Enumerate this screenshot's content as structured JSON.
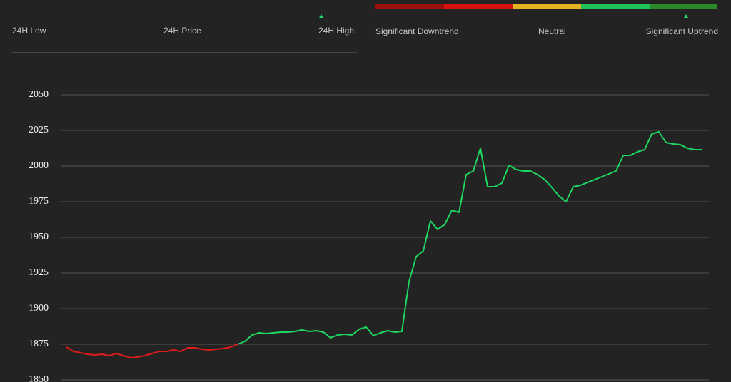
{
  "header": {
    "low_label": "24H Low",
    "price_label": "24H Price",
    "high_label": "24H High"
  },
  "trend": {
    "labels": [
      "Significant Downtrend",
      "Neutral",
      "Significant Uptrend"
    ]
  },
  "chart_data": {
    "type": "line",
    "ylim": [
      1849,
      2070
    ],
    "yticks": [
      1850,
      1875,
      1900,
      1925,
      1950,
      1975,
      2000,
      2025,
      2050
    ],
    "grid": true,
    "series": [
      {
        "color": "#e01b1b",
        "values": [
          1873,
          1870,
          1869,
          1868,
          1867.5,
          1868,
          1867,
          1868.5,
          1867,
          1865.5,
          1866,
          1867,
          1868.5,
          1870,
          1870,
          1871,
          1870,
          1872.5,
          1872.5,
          1871.5,
          1871,
          1871.5,
          1872,
          1873,
          1875,
          null,
          null,
          null,
          null,
          null,
          null,
          null,
          null,
          null,
          null,
          null,
          null,
          null,
          null,
          null,
          null,
          null,
          null,
          null,
          null,
          null,
          null,
          null,
          null,
          null,
          null,
          null,
          null,
          null,
          null,
          null,
          null,
          null,
          null,
          null,
          null,
          null,
          null,
          null,
          null,
          null,
          null,
          null,
          null,
          null,
          null,
          null,
          null,
          null,
          null,
          null,
          null,
          null,
          null,
          null,
          null,
          null,
          null,
          null,
          null,
          null,
          null,
          null,
          null,
          null
        ]
      },
      {
        "color": "#1ed760",
        "values": [
          null,
          null,
          null,
          null,
          null,
          null,
          null,
          null,
          null,
          null,
          null,
          null,
          null,
          null,
          null,
          null,
          null,
          null,
          null,
          null,
          null,
          null,
          null,
          null,
          1875,
          1877,
          1881.5,
          1883,
          1882.5,
          1883,
          1883.5,
          1883.5,
          1884,
          1885,
          1884,
          1884.5,
          1883.5,
          1879.5,
          1881.5,
          1882,
          1881.5,
          1885.5,
          1887,
          1881,
          1883,
          1884.5,
          1883.5,
          1884,
          1919,
          1936.5,
          1940.5,
          1961.5,
          1955.5,
          1959,
          1969,
          1967.5,
          1994,
          1996.5,
          2012.5,
          1985.5,
          1985.5,
          1988,
          2000.5,
          1997.5,
          1996.5,
          1996.5,
          1994,
          1990.5,
          1985,
          1979,
          1975,
          1985.5,
          1986.5,
          1988.5,
          1990.5,
          1992.5,
          1994.5,
          1996.5,
          2007.5,
          2007.5,
          2010,
          2011.5,
          2022.5,
          2024,
          2016.5,
          2015.5,
          2015,
          2012.5,
          2011.5,
          2011.5
        ]
      }
    ]
  }
}
